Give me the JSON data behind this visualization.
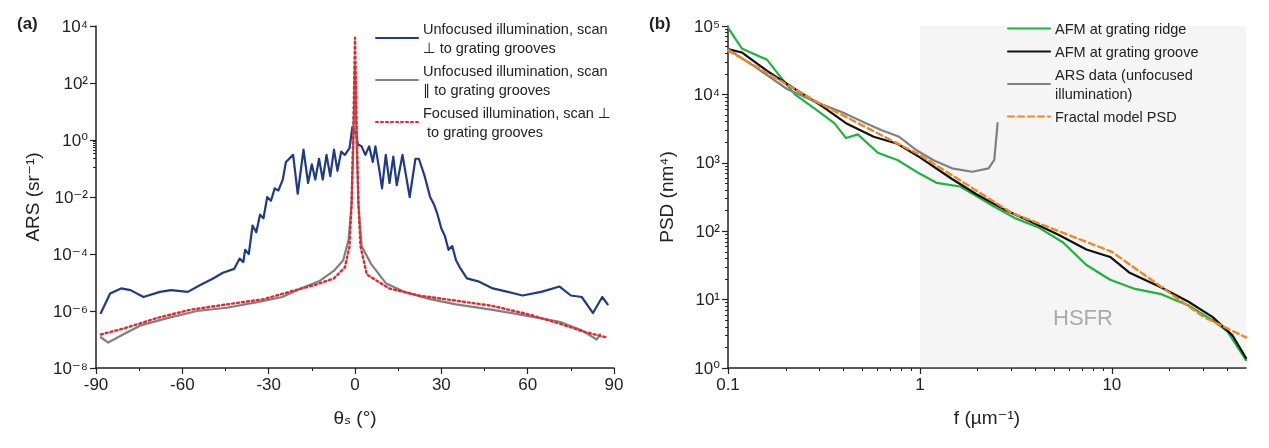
{
  "chart_data": [
    {
      "type": "line",
      "title": "(a)",
      "xlabel": "θₛ (°)",
      "ylabel": "ARS (sr⁻¹)",
      "log": "y",
      "grid": false,
      "legend": "top right",
      "marker": "none",
      "xlim": [
        -90,
        90
      ],
      "xticks": [
        -90,
        -60,
        -30,
        0,
        30,
        60,
        90
      ],
      "ylim": [
        1e-08,
        10000
      ],
      "yticks": [
        {
          "value": 1e-08,
          "label": "10⁻⁸"
        },
        {
          "value": 1e-06,
          "label": "10⁻⁶"
        },
        {
          "value": 0.0001,
          "label": "10⁻⁴"
        },
        {
          "value": 0.01,
          "label": "10⁻²"
        },
        {
          "value": 1,
          "label": "10⁰"
        },
        {
          "value": 100,
          "label": "10²"
        },
        {
          "value": 10000,
          "label": "10⁴"
        }
      ],
      "series": [
        {
          "name": "Unfocused illumination, scan ⊥ to grating grooves",
          "color": "#1f3a87",
          "line_style": "solid",
          "x": [
            -88.3,
            -85.1,
            -81.3,
            -78,
            -73.5,
            -67.8,
            -63.9,
            -58.1,
            -53.6,
            -49.8,
            -45.9,
            -42,
            -40.1,
            -38.8,
            -38.2,
            -36.9,
            -35.6,
            -34.3,
            -33,
            -31.8,
            -30.5,
            -29.2,
            -27.9,
            -26.6,
            -25.1,
            -24,
            -21.5,
            -19.9,
            -17.9,
            -16.3,
            -15,
            -13.8,
            -12.5,
            -11.2,
            -9.9,
            -8.6,
            -7.3,
            -6.1,
            -4.8,
            -3.5,
            -1.9,
            -0.9,
            0.4,
            1,
            2.3,
            3.6,
            4.9,
            6.2,
            7.1,
            8.4,
            9.4,
            10.7,
            12,
            13.3,
            14.5,
            16.5,
            19,
            21,
            22.2,
            24.2,
            26.1,
            27.4,
            28.7,
            30,
            31.2,
            32.5,
            33.8,
            35.1,
            36.4,
            38.9,
            42.8,
            47.9,
            53.1,
            58.2,
            64.7,
            71.1,
            75,
            78.8,
            82.7,
            85.9,
            87.8
          ],
          "values": [
            8.5e-07,
            4.1e-06,
            6.2e-06,
            5.4e-06,
            3.1e-06,
            4.7e-06,
            5.4e-06,
            4.7e-06,
            8.3e-06,
            1.3e-05,
            2.2e-05,
            3e-05,
            6.9e-05,
            5.2e-05,
            0.00014,
            0.0001,
            0.001,
            0.00058,
            0.0024,
            0.0018,
            0.01,
            0.0074,
            0.02,
            0.017,
            0.041,
            0.17,
            0.3,
            0.013,
            0.46,
            0.031,
            0.14,
            0.041,
            0.22,
            0.041,
            0.3,
            0.054,
            0.46,
            0.083,
            0.39,
            0.3,
            0.52,
            2.9,
            1.6,
            0.69,
            0.6,
            0.3,
            0.6,
            0.17,
            0.6,
            0.095,
            0.02,
            0.3,
            0.031,
            0.26,
            0.026,
            0.3,
            0.01,
            0.22,
            0.22,
            0.054,
            0.01,
            0.0056,
            0.0024,
            0.00078,
            0.00044,
            0.00014,
            0.00019,
            6e-05,
            3.4e-05,
            1.4e-05,
            1.1e-05,
            6.2e-06,
            4.7e-06,
            3.5e-06,
            4.7e-06,
            7.2e-06,
            3.5e-06,
            3.1e-06,
            8.5e-07,
            3.1e-06,
            1.7e-06
          ]
        },
        {
          "name": "Unfocused illumination, scan ∥ to grating grooves",
          "color": "#808080",
          "line_style": "solid",
          "x": [
            -88.3,
            -85.8,
            -80.6,
            -74.2,
            -65.2,
            -54.9,
            -44.6,
            -34.3,
            -25.3,
            -18.9,
            -12.5,
            -7.3,
            -4.1,
            -2.2,
            -1.2,
            -0.6,
            0,
            0.6,
            1.2,
            2.3,
            5.5,
            10.7,
            17.1,
            26.1,
            35.1,
            47.9,
            60.8,
            71.1,
            78.8,
            84,
            85.2
          ],
          "values": [
            1.2e-07,
            7.8e-08,
            1.5e-07,
            3.2e-07,
            5.6e-07,
            1e-06,
            1.3e-06,
            2e-06,
            3.1e-06,
            6.2e-06,
            1.1e-05,
            2.6e-05,
            6e-05,
            0.00033,
            0.0056,
            0.52,
            410,
            0.52,
            0.0056,
            0.00019,
            4.6e-05,
            9.5e-06,
            4.7e-06,
            2.6e-06,
            1.7e-06,
            1.1e-06,
            6.5e-07,
            4.2e-07,
            2.1e-07,
            1e-07,
            1.5e-07
          ]
        },
        {
          "name": "Focused illumination, scan ⊥ to grating grooves",
          "color": "#e8262b",
          "line_style": "dotted",
          "x": [
            -88.3,
            -80.6,
            -69,
            -57.4,
            -44.6,
            -31.8,
            -22.8,
            -13.8,
            -7.3,
            -3.5,
            -1.9,
            -1.2,
            -0.6,
            0,
            0.6,
            1.2,
            1.9,
            4.1,
            11.9,
            22.2,
            35.1,
            47.9,
            60.8,
            71.1,
            80.1,
            87.2
          ],
          "values": [
            1.5e-07,
            2.4e-07,
            5.6e-07,
            1.1e-06,
            1.7e-06,
            2.6e-06,
            4.7e-06,
            8.3e-06,
            1.4e-05,
            3.4e-05,
            0.00019,
            0.0056,
            2.1,
            3900,
            2.1,
            0.0056,
            0.00019,
            1.9e-05,
            6.2e-06,
            3.5e-06,
            2.3e-06,
            1.5e-06,
            7.4e-07,
            3.6e-07,
            1.8e-07,
            1.2e-07
          ]
        }
      ]
    },
    {
      "type": "line",
      "title": "(b)",
      "xlabel": "f (µm⁻¹)",
      "ylabel": "PSD (nm⁴)",
      "log": "xy",
      "grid": false,
      "legend": "top right",
      "marker": "none",
      "xlim": [
        0.1,
        50
      ],
      "xticks": [
        0.1,
        1,
        10
      ],
      "ylim": [
        1,
        100000
      ],
      "yticks": [
        {
          "value": 1,
          "label": "10⁰"
        },
        {
          "value": 10,
          "label": "10¹"
        },
        {
          "value": 100,
          "label": "10²"
        },
        {
          "value": 1000,
          "label": "10³"
        },
        {
          "value": 10000,
          "label": "10⁴"
        },
        {
          "value": 100000,
          "label": "10⁵"
        }
      ],
      "bands": [
        {
          "axis": "x",
          "from": 1,
          "to": 50,
          "label": "HSFR",
          "color": "#bbbbbb"
        }
      ],
      "series": [
        {
          "name": "AFM at grating ridge",
          "color": "#1db33f",
          "line_style": "solid",
          "x": [
            0.1,
            0.118,
            0.16,
            0.185,
            0.223,
            0.283,
            0.358,
            0.412,
            0.475,
            0.603,
            0.763,
            1,
            1.22,
            1.62,
            1.96,
            2.37,
            3.14,
            4.18,
            5.55,
            7.37,
            9.8,
            13,
            18.1,
            25.1,
            33.4,
            40.1,
            50
          ],
          "values": [
            95000,
            47000,
            32000,
            19000,
            10000,
            6200,
            3800,
            2300,
            2600,
            1400,
            1100,
            690,
            510,
            450,
            330,
            240,
            155,
            112,
            69,
            32,
            19.5,
            14.5,
            12,
            8.2,
            5,
            3.4,
            1.3
          ]
        },
        {
          "name": "AFM at grating groove",
          "color": "#111111",
          "line_style": "solid",
          "x": [
            0.1,
            0.118,
            0.16,
            0.223,
            0.31,
            0.412,
            0.574,
            0.763,
            1,
            1.47,
            1.96,
            2.73,
            3.79,
            5.27,
            7.37,
            9.8,
            12.3,
            18.1,
            25.1,
            33.4,
            42.5,
            50
          ],
          "values": [
            46000,
            41000,
            22000,
            12000,
            6700,
            3800,
            2400,
            1900,
            1200,
            580,
            350,
            210,
            137,
            89,
            54,
            42,
            25,
            15,
            9.3,
            5.6,
            3,
            1.4
          ]
        },
        {
          "name": "ARS data (unfocused illumination)",
          "color": "#808080",
          "line_style": "solid",
          "x": [
            0.1,
            0.139,
            0.203,
            0.283,
            0.394,
            0.523,
            0.632,
            0.78,
            0.97,
            1.17,
            1.47,
            1.87,
            2.28,
            2.44,
            2.54
          ],
          "values": [
            46000,
            25000,
            12000,
            7900,
            5500,
            3800,
            3000,
            2400,
            1500,
            1100,
            830,
            740,
            830,
            1100,
            3800
          ]
        },
        {
          "name": "Fractal model PSD",
          "color": "#f28522",
          "line_style": "dashed",
          "x": [
            0.1,
            0.3,
            1,
            3,
            10,
            30,
            50
          ],
          "values": [
            44000,
            7400,
            1300,
            186,
            50,
            5.6,
            2.8
          ]
        }
      ]
    }
  ]
}
